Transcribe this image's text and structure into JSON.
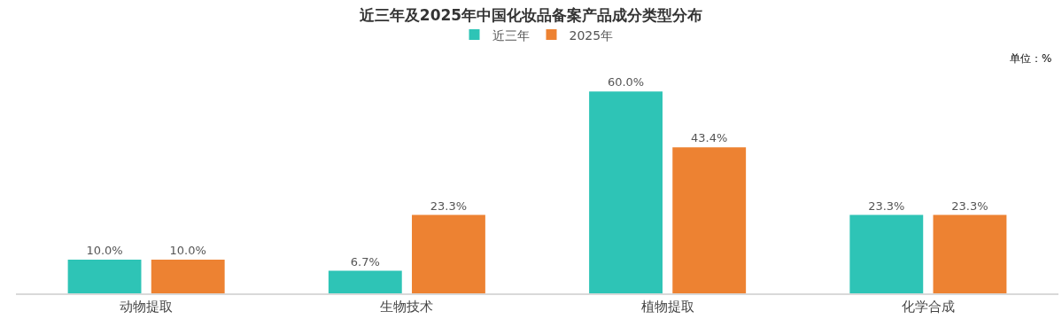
{
  "chart_data": {
    "type": "bar",
    "title": "近三年及2025年中国化妆品备案产品成分类型分布",
    "annotations": [
      "单位：%"
    ],
    "categories": [
      "动物提取",
      "生物技术",
      "植物提取",
      "化学合成"
    ],
    "series": [
      {
        "name": "近三年",
        "color": "#2ec4b6",
        "values": [
          10.0,
          6.7,
          60.0,
          23.3
        ],
        "value_labels": [
          "10.0%",
          "6.7%",
          "60.0%",
          "23.3%"
        ]
      },
      {
        "name": "2025年",
        "color": "#ed8232",
        "values": [
          10.0,
          23.3,
          43.4,
          23.3
        ],
        "value_labels": [
          "10.0%",
          "23.3%",
          "43.4%",
          "23.3%"
        ]
      }
    ],
    "legend": "top"
  }
}
